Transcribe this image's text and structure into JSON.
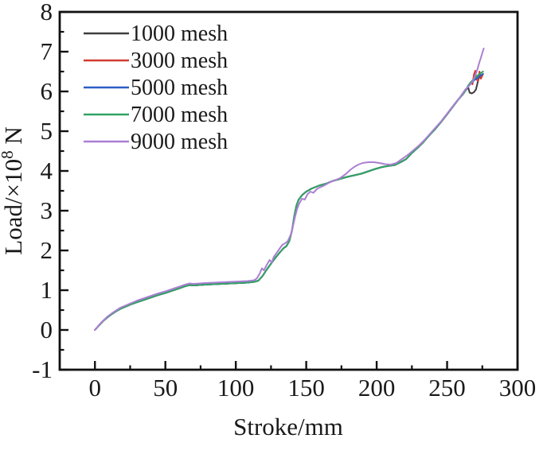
{
  "figure": {
    "background": "#ffffff",
    "frame_color": "#111111"
  },
  "chart_data": {
    "type": "line",
    "title": "",
    "xlabel": "Stroke/mm",
    "ylabel": {
      "prefix": "Load/×10",
      "sup": "8",
      "suffix": " N"
    },
    "xlim": [
      -25,
      300
    ],
    "ylim": [
      -1,
      8
    ],
    "x_major_ticks": [
      0,
      50,
      100,
      150,
      200,
      250,
      300
    ],
    "x_minor_ticks": [
      25,
      75,
      125,
      175,
      225,
      275
    ],
    "y_major_ticks": [
      -1,
      0,
      1,
      2,
      3,
      4,
      5,
      6,
      7,
      8
    ],
    "y_minor_ticks": [
      -0.5,
      0.5,
      1.5,
      2.5,
      3.5,
      4.5,
      5.5,
      6.5,
      7.5
    ],
    "grid": false,
    "legend_position": "top-left-inside",
    "base_points": [
      [
        0,
        0
      ],
      [
        3,
        0.12
      ],
      [
        6,
        0.23
      ],
      [
        9,
        0.32
      ],
      [
        12,
        0.4
      ],
      [
        15,
        0.47
      ],
      [
        18,
        0.53
      ],
      [
        22,
        0.59
      ],
      [
        26,
        0.65
      ],
      [
        30,
        0.7
      ],
      [
        35,
        0.76
      ],
      [
        40,
        0.82
      ],
      [
        45,
        0.88
      ],
      [
        50,
        0.93
      ],
      [
        55,
        0.99
      ],
      [
        60,
        1.05
      ],
      [
        64,
        1.1
      ],
      [
        67,
        1.13
      ],
      [
        70,
        1.12
      ],
      [
        74,
        1.13
      ],
      [
        78,
        1.14
      ],
      [
        84,
        1.15
      ],
      [
        90,
        1.16
      ],
      [
        96,
        1.17
      ],
      [
        102,
        1.18
      ],
      [
        108,
        1.19
      ],
      [
        113,
        1.21
      ],
      [
        116,
        1.24
      ],
      [
        119,
        1.36
      ],
      [
        122,
        1.52
      ],
      [
        125,
        1.67
      ],
      [
        128,
        1.81
      ],
      [
        131,
        1.94
      ],
      [
        134,
        2.06
      ],
      [
        136,
        2.11
      ],
      [
        138,
        2.24
      ],
      [
        140,
        2.52
      ],
      [
        141.5,
        2.86
      ],
      [
        143,
        3.12
      ],
      [
        144.5,
        3.27
      ],
      [
        147,
        3.39
      ],
      [
        150,
        3.48
      ],
      [
        154,
        3.56
      ],
      [
        159,
        3.63
      ],
      [
        164,
        3.68
      ],
      [
        169,
        3.75
      ],
      [
        174,
        3.8
      ],
      [
        179,
        3.85
      ],
      [
        184,
        3.89
      ],
      [
        189,
        3.93
      ],
      [
        194,
        3.99
      ],
      [
        199,
        4.05
      ],
      [
        204,
        4.1
      ],
      [
        209,
        4.13
      ],
      [
        213,
        4.15
      ],
      [
        217,
        4.22
      ],
      [
        221,
        4.3
      ],
      [
        225,
        4.45
      ],
      [
        229,
        4.58
      ],
      [
        233,
        4.72
      ],
      [
        237,
        4.88
      ],
      [
        241,
        5.03
      ],
      [
        245,
        5.2
      ],
      [
        249,
        5.38
      ],
      [
        252,
        5.52
      ],
      [
        255,
        5.66
      ],
      [
        258,
        5.8
      ],
      [
        261,
        5.92
      ],
      [
        263,
        6.02
      ]
    ],
    "series": [
      {
        "name": "1000 mesh",
        "color": "#3d3d3d",
        "use_base": true,
        "tail": [
          [
            265,
            6.1
          ],
          [
            266,
            5.97
          ],
          [
            267.5,
            5.95
          ],
          [
            269,
            5.98
          ],
          [
            270.5,
            6.05
          ],
          [
            271.5,
            6.2
          ],
          [
            272.5,
            6.33
          ],
          [
            274,
            6.4
          ],
          [
            275,
            6.42
          ]
        ]
      },
      {
        "name": "3000 mesh",
        "color": "#d23a31",
        "use_base": true,
        "tail": [
          [
            265,
            6.12
          ],
          [
            266.5,
            6.22
          ],
          [
            268,
            6.18
          ],
          [
            269,
            6.42
          ],
          [
            270,
            6.52
          ],
          [
            270.8,
            6.3
          ],
          [
            272,
            6.27
          ],
          [
            273,
            6.5
          ],
          [
            274,
            6.32
          ],
          [
            275.5,
            6.44
          ]
        ]
      },
      {
        "name": "5000 mesh",
        "color": "#2c5fc4",
        "use_base": true,
        "tail": [
          [
            265,
            6.12
          ],
          [
            267,
            6.2
          ],
          [
            269,
            6.28
          ],
          [
            271,
            6.33
          ],
          [
            273,
            6.38
          ],
          [
            275.5,
            6.44
          ]
        ]
      },
      {
        "name": "7000 mesh",
        "color": "#31a464",
        "use_base": true,
        "tail": [
          [
            265,
            6.15
          ],
          [
            267,
            6.24
          ],
          [
            269,
            6.32
          ],
          [
            271,
            6.38
          ],
          [
            273,
            6.44
          ],
          [
            275.5,
            6.5
          ]
        ]
      },
      {
        "name": "9000 mesh",
        "color": "#ab7fd2",
        "use_base": false,
        "points": [
          [
            0,
            0
          ],
          [
            3,
            0.13
          ],
          [
            6,
            0.24
          ],
          [
            9,
            0.34
          ],
          [
            12,
            0.42
          ],
          [
            15,
            0.49
          ],
          [
            18,
            0.56
          ],
          [
            22,
            0.62
          ],
          [
            26,
            0.68
          ],
          [
            30,
            0.74
          ],
          [
            35,
            0.8
          ],
          [
            40,
            0.86
          ],
          [
            45,
            0.92
          ],
          [
            50,
            0.97
          ],
          [
            55,
            1.03
          ],
          [
            60,
            1.09
          ],
          [
            64,
            1.14
          ],
          [
            67,
            1.17
          ],
          [
            70,
            1.16
          ],
          [
            74,
            1.17
          ],
          [
            78,
            1.18
          ],
          [
            84,
            1.19
          ],
          [
            90,
            1.2
          ],
          [
            96,
            1.21
          ],
          [
            102,
            1.22
          ],
          [
            108,
            1.23
          ],
          [
            113,
            1.25
          ],
          [
            115,
            1.3
          ],
          [
            117,
            1.42
          ],
          [
            118.5,
            1.55
          ],
          [
            120,
            1.5
          ],
          [
            122,
            1.64
          ],
          [
            124,
            1.76
          ],
          [
            125.5,
            1.7
          ],
          [
            127,
            1.84
          ],
          [
            129,
            1.94
          ],
          [
            131,
            2.04
          ],
          [
            133,
            2.14
          ],
          [
            135,
            2.18
          ],
          [
            137,
            2.24
          ],
          [
            139,
            2.4
          ],
          [
            140.5,
            2.6
          ],
          [
            142,
            2.84
          ],
          [
            143.5,
            3.04
          ],
          [
            145,
            3.18
          ],
          [
            147,
            3.3
          ],
          [
            149,
            3.28
          ],
          [
            151,
            3.42
          ],
          [
            153,
            3.48
          ],
          [
            155,
            3.45
          ],
          [
            158,
            3.56
          ],
          [
            162,
            3.62
          ],
          [
            166,
            3.7
          ],
          [
            170,
            3.76
          ],
          [
            174,
            3.82
          ],
          [
            178,
            3.92
          ],
          [
            181,
            4.02
          ],
          [
            184,
            4.1
          ],
          [
            187,
            4.16
          ],
          [
            190,
            4.2
          ],
          [
            194,
            4.22
          ],
          [
            198,
            4.22
          ],
          [
            202,
            4.2
          ],
          [
            206,
            4.17
          ],
          [
            210,
            4.16
          ],
          [
            214,
            4.2
          ],
          [
            218,
            4.3
          ],
          [
            222,
            4.4
          ],
          [
            226,
            4.52
          ],
          [
            230,
            4.64
          ],
          [
            234,
            4.78
          ],
          [
            238,
            4.94
          ],
          [
            242,
            5.1
          ],
          [
            246,
            5.26
          ],
          [
            250,
            5.44
          ],
          [
            253,
            5.58
          ],
          [
            256,
            5.72
          ],
          [
            259,
            5.85
          ],
          [
            261,
            5.95
          ],
          [
            263,
            6.05
          ],
          [
            265,
            6.12
          ],
          [
            267,
            6.2
          ],
          [
            268.5,
            6.28
          ],
          [
            270,
            6.4
          ],
          [
            271,
            6.5
          ],
          [
            272,
            6.62
          ],
          [
            273,
            6.74
          ],
          [
            274,
            6.85
          ],
          [
            275,
            6.97
          ],
          [
            276,
            7.08
          ]
        ],
        "tail": []
      }
    ]
  }
}
